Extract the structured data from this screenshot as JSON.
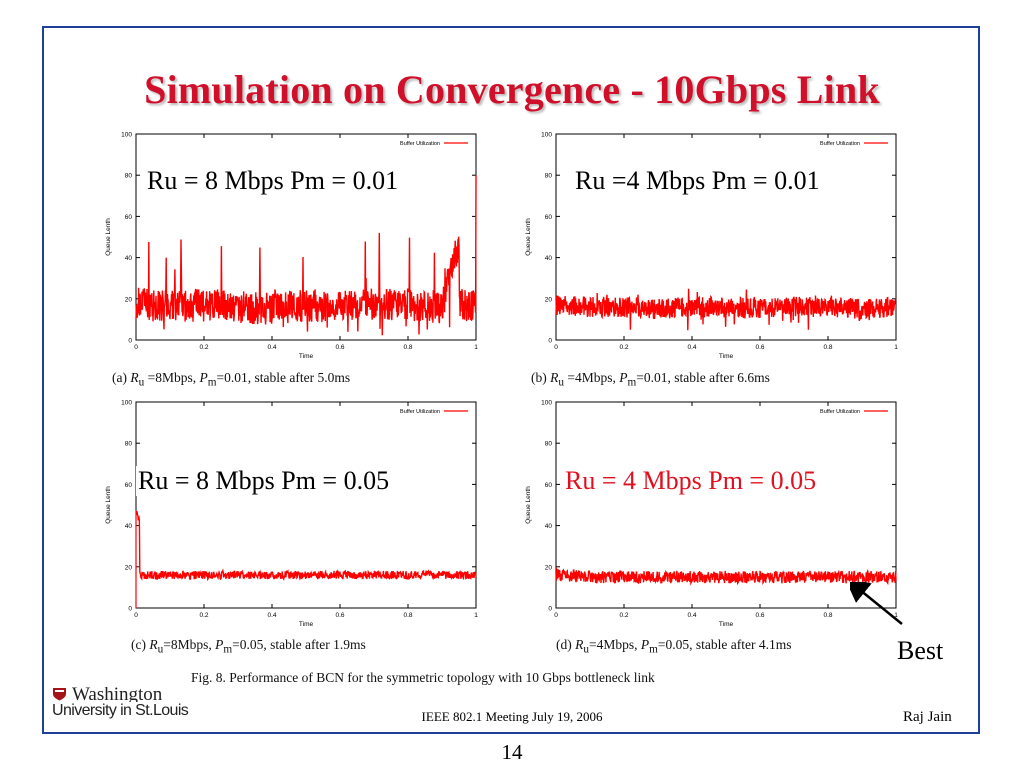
{
  "slide": {
    "title": "Simulation on Convergence - 10Gbps Link",
    "best_label": "Best",
    "figure_caption": "Fig. 8.    Performance of BCN for the symmetric topology with 10 Gbps bottleneck link",
    "footer_center": "IEEE 802.1 Meeting  July 19, 2006",
    "footer_right": "Raj Jain",
    "page_number": "14",
    "logo_top": "Washington",
    "logo_bottom": "University in St.Louis"
  },
  "panels": [
    {
      "id": "a",
      "overlay": "Ru = 8 Mbps Pm = 0.01",
      "overlay_color": "#000000",
      "caption_prefix": "(a) ",
      "ru_sub": "u",
      "ru_val": " =8Mbps, ",
      "pm_sub": "m",
      "pm_val": "=0.01, stable after  5.0ms"
    },
    {
      "id": "b",
      "overlay": "Ru =4 Mbps Pm = 0.01",
      "overlay_color": "#000000",
      "caption_prefix": "(b) ",
      "ru_sub": "u",
      "ru_val": " =4Mbps, ",
      "pm_sub": "m",
      "pm_val": "=0.01, stable after  6.6ms"
    },
    {
      "id": "c",
      "overlay": "Ru = 8 Mbps Pm = 0.05",
      "overlay_color": "#000000",
      "caption_prefix": "(c) ",
      "ru_sub": "u",
      "ru_val": "=8Mbps, ",
      "pm_sub": "m",
      "pm_val": "=0.05, stable after  1.9ms"
    },
    {
      "id": "d",
      "overlay": "Ru = 4 Mbps Pm = 0.05",
      "overlay_color": "#e0101e",
      "caption_prefix": "(d) ",
      "ru_sub": "u",
      "ru_val": "=4Mbps, ",
      "pm_sub": "m",
      "pm_val": "=0.05, stable after  4.1ms"
    }
  ],
  "chart_data": [
    {
      "type": "line",
      "xlabel": "Time",
      "ylabel": "Queue Lenth",
      "legend": "Buffer Utilization",
      "legend_position": "top-right",
      "xlim": [
        0,
        1
      ],
      "ylim": [
        0,
        100
      ],
      "xticks": [
        "0",
        "0.2",
        "0.4",
        "0.6",
        "0.8",
        "1"
      ],
      "yticks": [
        "0",
        "20",
        "40",
        "60",
        "80",
        "100"
      ],
      "series": [
        {
          "color": "#ff0000",
          "x": [
            0,
            0.1,
            0.2,
            0.3,
            0.4,
            0.5,
            0.6,
            0.7,
            0.8,
            0.9,
            1.0
          ],
          "y": [
            18,
            16,
            17,
            16,
            15,
            17,
            16,
            18,
            17,
            16,
            80
          ]
        }
      ],
      "noise_amplitude": 8,
      "spike_peak": 52
    },
    {
      "type": "line",
      "xlabel": "Time",
      "ylabel": "Queue Lenth",
      "legend": "Buffer Utilization",
      "legend_position": "top-right",
      "xlim": [
        0,
        1
      ],
      "ylim": [
        0,
        100
      ],
      "xticks": [
        "0",
        "0.2",
        "0.4",
        "0.6",
        "0.8",
        "1"
      ],
      "yticks": [
        "0",
        "20",
        "40",
        "60",
        "80",
        "100"
      ],
      "series": [
        {
          "color": "#ff0000",
          "x": [
            0,
            0.1,
            0.2,
            0.3,
            0.4,
            0.5,
            0.6,
            0.7,
            0.8,
            0.9,
            1.0
          ],
          "y": [
            17,
            16,
            16,
            15,
            16,
            16,
            15,
            16,
            16,
            15,
            16
          ]
        }
      ],
      "noise_amplitude": 5,
      "spike_peak": 29
    },
    {
      "type": "line",
      "xlabel": "Time",
      "ylabel": "Queue Lenth",
      "legend": "Buffer Utilization",
      "legend_position": "top-right",
      "xlim": [
        0,
        1
      ],
      "ylim": [
        0,
        100
      ],
      "xticks": [
        "0",
        "0.2",
        "0.4",
        "0.6",
        "0.8",
        "1"
      ],
      "yticks": [
        "0",
        "20",
        "40",
        "60",
        "80",
        "100"
      ],
      "series": [
        {
          "color": "#ff0000",
          "x": [
            0,
            0.1,
            0.2,
            0.3,
            0.4,
            0.5,
            0.6,
            0.7,
            0.8,
            0.9,
            1.0
          ],
          "y": [
            46,
            16,
            16,
            16,
            16,
            16,
            16,
            16,
            16,
            16,
            16
          ]
        }
      ],
      "noise_amplitude": 2,
      "spike_peak": 46
    },
    {
      "type": "line",
      "xlabel": "Time",
      "ylabel": "Queue Lenth",
      "legend": "Buffer Utilization",
      "legend_position": "top-right",
      "xlim": [
        0,
        1
      ],
      "ylim": [
        0,
        100
      ],
      "xticks": [
        "0",
        "0.2",
        "0.4",
        "0.6",
        "0.8",
        "1"
      ],
      "yticks": [
        "0",
        "20",
        "40",
        "60",
        "80",
        "100"
      ],
      "series": [
        {
          "color": "#ff0000",
          "x": [
            0,
            0.1,
            0.2,
            0.3,
            0.4,
            0.5,
            0.6,
            0.7,
            0.8,
            0.9,
            1.0
          ],
          "y": [
            16,
            15,
            15,
            15,
            15,
            15,
            15,
            15,
            15,
            15,
            15
          ]
        }
      ],
      "noise_amplitude": 3,
      "spike_peak": 20
    }
  ]
}
